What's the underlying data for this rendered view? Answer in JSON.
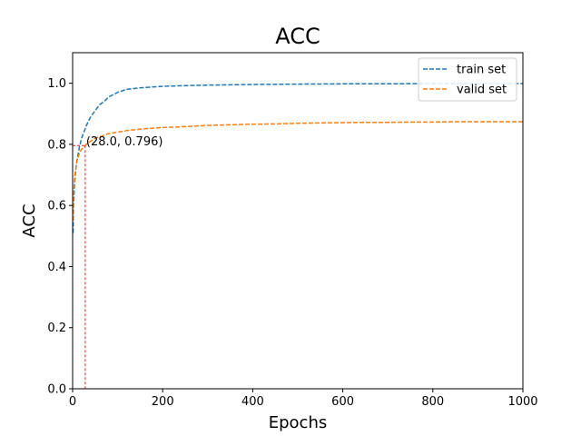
{
  "chart_data": {
    "type": "line",
    "title": "ACC",
    "xlabel": "Epochs",
    "ylabel": "ACC",
    "xlim": [
      0,
      1000
    ],
    "ylim": [
      0,
      1.1
    ],
    "xticks": [
      0,
      200,
      400,
      600,
      800,
      1000
    ],
    "xtick_labels": [
      "0",
      "200",
      "400",
      "600",
      "800",
      "1000"
    ],
    "yticks": [
      0.0,
      0.2,
      0.4,
      0.6,
      0.8,
      1.0
    ],
    "ytick_labels": [
      "0.0",
      "0.2",
      "0.4",
      "0.6",
      "0.8",
      "1.0"
    ],
    "grid": false,
    "legend_position": "top-right",
    "series": [
      {
        "name": "train set",
        "color": "#1f77b4",
        "style": "dashed",
        "x": [
          1,
          2,
          4,
          6,
          8,
          10,
          15,
          20,
          25,
          30,
          40,
          50,
          60,
          70,
          80,
          100,
          120,
          150,
          200,
          250,
          300,
          400,
          500,
          600,
          700,
          800,
          900,
          1000
        ],
        "y": [
          0.51,
          0.6,
          0.66,
          0.7,
          0.73,
          0.75,
          0.79,
          0.82,
          0.84,
          0.86,
          0.89,
          0.91,
          0.93,
          0.94,
          0.955,
          0.97,
          0.98,
          0.985,
          0.99,
          0.992,
          0.994,
          0.996,
          0.997,
          0.998,
          0.998,
          0.999,
          0.999,
          0.999
        ]
      },
      {
        "name": "valid set",
        "color": "#ff7f0e",
        "style": "dashed",
        "x": [
          1,
          2,
          4,
          6,
          8,
          10,
          15,
          20,
          25,
          28,
          30,
          40,
          50,
          60,
          80,
          100,
          120,
          150,
          200,
          250,
          300,
          350,
          400,
          450,
          500,
          550,
          600,
          650,
          700,
          750,
          800,
          850,
          900,
          950,
          1000
        ],
        "y": [
          0.55,
          0.63,
          0.68,
          0.71,
          0.73,
          0.75,
          0.77,
          0.785,
          0.79,
          0.796,
          0.8,
          0.81,
          0.82,
          0.825,
          0.835,
          0.84,
          0.845,
          0.85,
          0.855,
          0.858,
          0.862,
          0.864,
          0.866,
          0.867,
          0.869,
          0.87,
          0.871,
          0.872,
          0.872,
          0.873,
          0.873,
          0.874,
          0.874,
          0.874,
          0.874
        ]
      }
    ],
    "annotation": {
      "text": "(28.0, 0.796)",
      "x": 28.0,
      "y": 0.796,
      "color": "#d62728"
    }
  }
}
